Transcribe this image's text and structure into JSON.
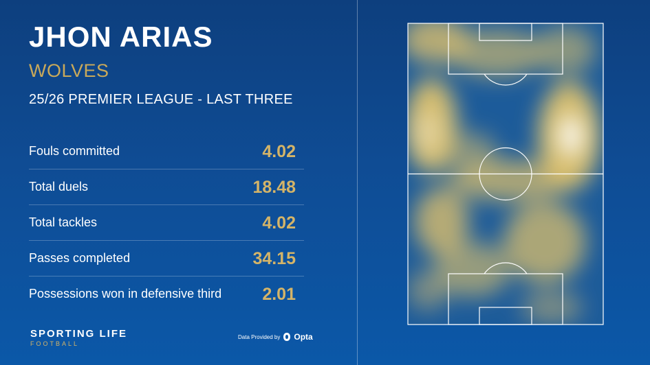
{
  "player": {
    "name": "JHON ARIAS",
    "club": "WOLVES"
  },
  "subtitle": "25/26 PREMIER LEAGUE - LAST THREE",
  "stats": [
    {
      "label": "Fouls committed",
      "value": "4.02"
    },
    {
      "label": "Total duels",
      "value": "18.48"
    },
    {
      "label": "Total tackles",
      "value": "4.02"
    },
    {
      "label": "Passes completed",
      "value": "34.15"
    },
    {
      "label": "Possessions won in defensive third",
      "value": "2.01"
    }
  ],
  "branding": {
    "line1": "SPORTING LIFE",
    "line2": "FOOTBALL"
  },
  "credit": {
    "text": "Data Provided by",
    "provider": "Opta"
  },
  "colors": {
    "accent": "#d4b468",
    "background": "#0f4c94"
  }
}
